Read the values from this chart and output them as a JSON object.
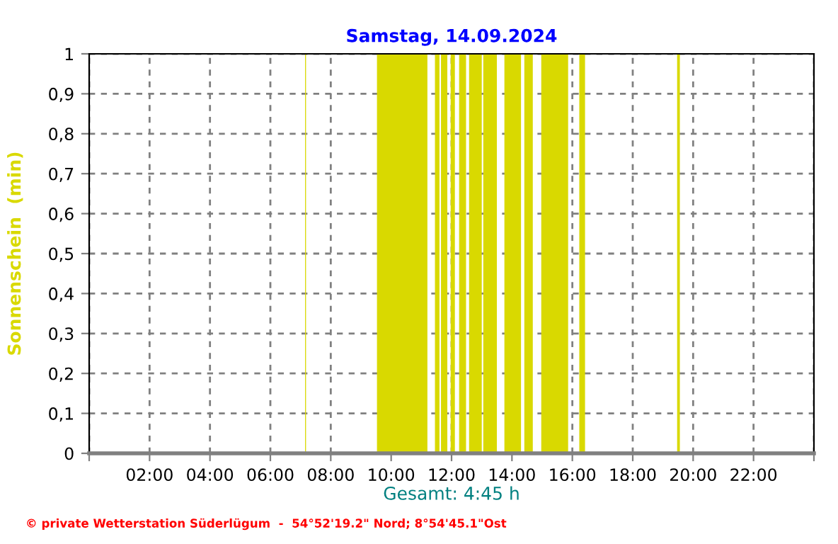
{
  "chart_data": {
    "type": "area",
    "title": "Samstag, 14.09.2024",
    "xlabel": "Gesamt: 4:45 h",
    "ylabel": "Sonnenschein  (min)",
    "annotations": [
      "© private Wetterstation Süderlügum  -  54°52'19.2\" Nord; 8°54'45.1\"Ost"
    ],
    "series": [
      {
        "color": "#d9d900",
        "x": [
          0,
          7.15,
          7.15,
          7.18,
          7.18,
          9.53,
          9.53,
          11.2,
          11.2,
          11.45,
          11.45,
          11.6,
          11.6,
          11.65,
          11.65,
          11.86,
          11.86,
          11.97,
          11.97,
          12.11,
          12.11,
          12.25,
          12.25,
          12.48,
          12.48,
          12.58,
          12.58,
          13.0,
          13.0,
          13.05,
          13.05,
          13.5,
          13.5,
          13.75,
          13.75,
          14.3,
          14.3,
          14.41,
          14.41,
          14.69,
          14.69,
          14.97,
          14.97,
          15.86,
          15.86,
          16.23,
          16.23,
          16.42,
          16.42,
          19.47,
          19.47,
          19.56,
          19.56,
          24
        ],
        "values": [
          0,
          0,
          1,
          1,
          0,
          0,
          1,
          1,
          0,
          0,
          1,
          1,
          0,
          0,
          1,
          1,
          0,
          0,
          1,
          1,
          0,
          0,
          1,
          1,
          0,
          0,
          1,
          1,
          0,
          0,
          1,
          1,
          0,
          0,
          1,
          1,
          0,
          0,
          1,
          1,
          0,
          0,
          1,
          1,
          0,
          0,
          1,
          1,
          0,
          0,
          1,
          1,
          0,
          0
        ]
      }
    ],
    "xlim": [
      0,
      24
    ],
    "xticks": [
      {
        "value": 0,
        "label": null
      },
      {
        "value": 2,
        "label": "02:00"
      },
      {
        "value": 4,
        "label": "04:00"
      },
      {
        "value": 6,
        "label": "06:00"
      },
      {
        "value": 8,
        "label": "08:00"
      },
      {
        "value": 10,
        "label": "10:00"
      },
      {
        "value": 12,
        "label": "12:00"
      },
      {
        "value": 14,
        "label": "14:00"
      },
      {
        "value": 16,
        "label": "16:00"
      },
      {
        "value": 18,
        "label": "18:00"
      },
      {
        "value": 20,
        "label": "20:00"
      },
      {
        "value": 22,
        "label": "22:00"
      },
      {
        "value": 24,
        "label": null
      }
    ],
    "ylim": [
      0,
      1
    ],
    "yticks": [
      0,
      {
        "value": 0.1,
        "label": "0,1"
      },
      {
        "value": 0.2,
        "label": "0,2"
      },
      {
        "value": 0.3,
        "label": "0,3"
      },
      {
        "value": 0.4,
        "label": "0,4"
      },
      {
        "value": 0.5,
        "label": "0,5"
      },
      {
        "value": 0.6,
        "label": "0,6"
      },
      {
        "value": 0.7,
        "label": "0,7"
      },
      {
        "value": 0.8,
        "label": "0,8"
      },
      {
        "value": 0.9,
        "label": "0,9"
      },
      1
    ],
    "grid": true,
    "legend": false,
    "line_style": "dashed"
  }
}
